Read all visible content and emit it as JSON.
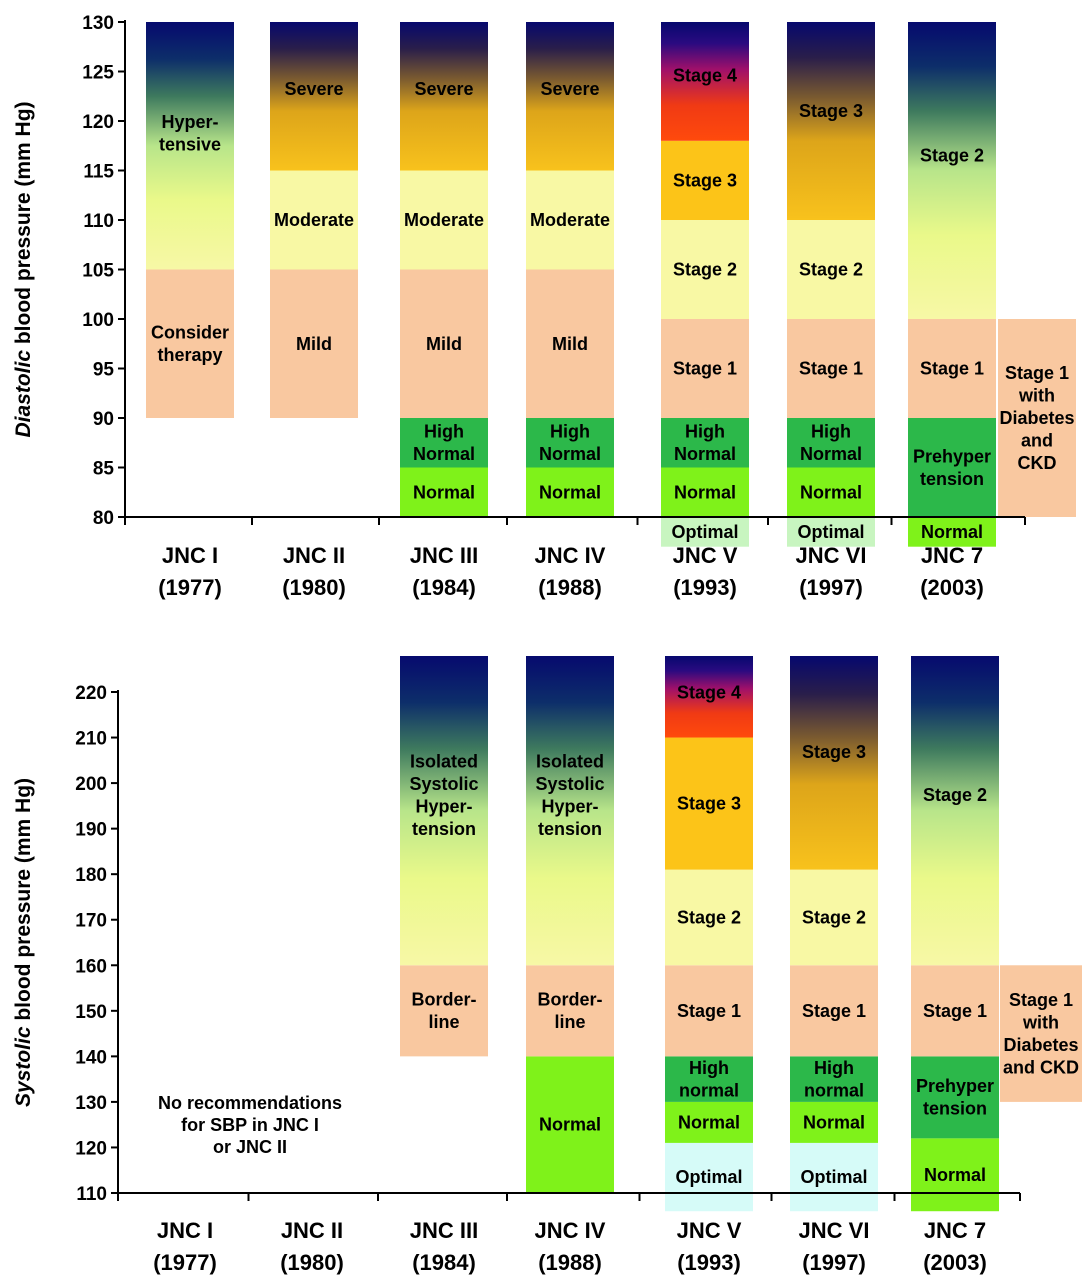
{
  "chart_data": [
    {
      "type": "bar",
      "ylabel_italic": "Diastolic",
      "ylabel_rest": " blood pressure (mm Hg)",
      "ylim": [
        80,
        130
      ],
      "yticks": [
        80,
        85,
        90,
        95,
        100,
        105,
        110,
        115,
        120,
        125,
        130
      ],
      "categories": [
        {
          "label": [
            "JNC I",
            "(1977)"
          ]
        },
        {
          "label": [
            "JNC II",
            "(1980)"
          ]
        },
        {
          "label": [
            "JNC III",
            "(1984)"
          ]
        },
        {
          "label": [
            "JNC IV",
            "(1988)"
          ]
        },
        {
          "label": [
            "JNC V",
            "(1993)"
          ]
        },
        {
          "label": [
            "JNC VI",
            "(1997)"
          ]
        },
        {
          "label": [
            "JNC 7",
            "(2003)"
          ]
        }
      ],
      "bars": [
        {
          "category": 0,
          "segments": [
            {
              "from": 90,
              "to": 105,
              "label": [
                "Consider",
                "therapy"
              ],
              "color": "#F9C8A0"
            },
            {
              "from": 105,
              "to": 130,
              "label": [
                "Hyper-",
                "tensive"
              ],
              "gradient": "dark"
            }
          ]
        },
        {
          "category": 1,
          "segments": [
            {
              "from": 90,
              "to": 105,
              "label": [
                "Mild"
              ],
              "color": "#F9C8A0"
            },
            {
              "from": 105,
              "to": 115,
              "label": [
                "Moderate"
              ],
              "color": "#F8F8A4"
            },
            {
              "from": 115,
              "to": 130,
              "label": [
                "Severe"
              ],
              "gradient": "gold"
            }
          ]
        },
        {
          "category": 2,
          "segments": [
            {
              "from": 80,
              "to": 85,
              "label": [
                "Normal"
              ],
              "color": "#7FF21A"
            },
            {
              "from": 85,
              "to": 90,
              "label": [
                "High",
                "Normal"
              ],
              "color": "#2CB84A"
            },
            {
              "from": 90,
              "to": 105,
              "label": [
                "Mild"
              ],
              "color": "#F9C8A0"
            },
            {
              "from": 105,
              "to": 115,
              "label": [
                "Moderate"
              ],
              "color": "#F8F8A4"
            },
            {
              "from": 115,
              "to": 130,
              "label": [
                "Severe"
              ],
              "gradient": "gold"
            }
          ]
        },
        {
          "category": 3,
          "segments": [
            {
              "from": 80,
              "to": 85,
              "label": [
                "Normal"
              ],
              "color": "#7FF21A"
            },
            {
              "from": 85,
              "to": 90,
              "label": [
                "High",
                "Normal"
              ],
              "color": "#2CB84A"
            },
            {
              "from": 90,
              "to": 105,
              "label": [
                "Mild"
              ],
              "color": "#F9C8A0"
            },
            {
              "from": 105,
              "to": 115,
              "label": [
                "Moderate"
              ],
              "color": "#F8F8A4"
            },
            {
              "from": 115,
              "to": 130,
              "label": [
                "Severe"
              ],
              "gradient": "gold"
            }
          ]
        },
        {
          "category": 4,
          "segments": [
            {
              "from": 77,
              "to": 80,
              "label": [
                "Optimal"
              ],
              "color": "#C8F5C0"
            },
            {
              "from": 80,
              "to": 85,
              "label": [
                "Normal"
              ],
              "color": "#7FF21A"
            },
            {
              "from": 85,
              "to": 90,
              "label": [
                "High",
                "Normal"
              ],
              "color": "#2CB84A"
            },
            {
              "from": 90,
              "to": 100,
              "label": [
                "Stage 1"
              ],
              "color": "#F9C8A0"
            },
            {
              "from": 100,
              "to": 110,
              "label": [
                "Stage 2"
              ],
              "color": "#F8F8A4"
            },
            {
              "from": 110,
              "to": 118,
              "label": [
                "Stage 3"
              ],
              "color": "#FCC418"
            },
            {
              "from": 118,
              "to": 130,
              "label": [
                "Stage 4"
              ],
              "gradient": "red"
            }
          ]
        },
        {
          "category": 5,
          "segments": [
            {
              "from": 77,
              "to": 80,
              "label": [
                "Optimal"
              ],
              "color": "#C8F5C0"
            },
            {
              "from": 80,
              "to": 85,
              "label": [
                "Normal"
              ],
              "color": "#7FF21A"
            },
            {
              "from": 85,
              "to": 90,
              "label": [
                "High",
                "Normal"
              ],
              "color": "#2CB84A"
            },
            {
              "from": 90,
              "to": 100,
              "label": [
                "Stage 1"
              ],
              "color": "#F9C8A0"
            },
            {
              "from": 100,
              "to": 110,
              "label": [
                "Stage 2"
              ],
              "color": "#F8F8A4"
            },
            {
              "from": 110,
              "to": 130,
              "label": [
                "Stage 3"
              ],
              "gradient": "gold"
            }
          ]
        },
        {
          "category": 6,
          "segments": [
            {
              "from": 77,
              "to": 80,
              "label": [
                "Normal"
              ],
              "color": "#7FF21A"
            },
            {
              "from": 80,
              "to": 90,
              "label": [
                "Prehyper",
                "tension"
              ],
              "color": "#2CB84A"
            },
            {
              "from": 90,
              "to": 100,
              "label": [
                "Stage 1"
              ],
              "color": "#F9C8A0"
            },
            {
              "from": 100,
              "to": 130,
              "label": [
                "Stage 2"
              ],
              "gradient": "dark"
            }
          ]
        },
        {
          "category": 7,
          "extra": true,
          "segments": [
            {
              "from": 80,
              "to": 100,
              "label": [
                "Stage 1",
                "with",
                "Diabetes",
                "and",
                "CKD"
              ],
              "color": "#F9C8A0"
            }
          ]
        }
      ]
    },
    {
      "type": "bar",
      "ylabel_italic": "Systolic",
      "ylabel_rest": " blood pressure (mm Hg)",
      "ylim": [
        110,
        220
      ],
      "yticks": [
        110,
        120,
        130,
        140,
        150,
        160,
        170,
        180,
        190,
        200,
        210,
        220
      ],
      "note": [
        "No recommendations",
        "for SBP in JNC I",
        "or JNC II"
      ],
      "categories": [
        {
          "label": [
            "JNC I",
            "(1977)"
          ]
        },
        {
          "label": [
            "JNC II",
            "(1980)"
          ]
        },
        {
          "label": [
            "JNC III",
            "(1984)"
          ]
        },
        {
          "label": [
            "JNC IV",
            "(1988)"
          ]
        },
        {
          "label": [
            "JNC V",
            "(1993)"
          ]
        },
        {
          "label": [
            "JNC VI",
            "(1997)"
          ]
        },
        {
          "label": [
            "JNC 7",
            "(2003)"
          ]
        }
      ],
      "bars": [
        {
          "category": 2,
          "segments": [
            {
              "from": 140,
              "to": 160,
              "label": [
                "Border-",
                "line"
              ],
              "color": "#F9C8A0"
            },
            {
              "from": 160,
              "to": 228,
              "label": [
                "Isolated",
                "Systolic",
                "Hyper-",
                "tension"
              ],
              "gradient": "dark"
            }
          ]
        },
        {
          "category": 3,
          "segments": [
            {
              "from": 110,
              "to": 140,
              "label": [
                "Normal"
              ],
              "color": "#7FF21A"
            },
            {
              "from": 140,
              "to": 160,
              "label": [
                "Border-",
                "line"
              ],
              "color": "#F9C8A0"
            },
            {
              "from": 160,
              "to": 228,
              "label": [
                "Isolated",
                "Systolic",
                "Hyper-",
                "tension"
              ],
              "gradient": "dark"
            }
          ]
        },
        {
          "category": 4,
          "segments": [
            {
              "from": 106,
              "to": 121,
              "label": [
                "Optimal"
              ],
              "color": "#D6FBF8"
            },
            {
              "from": 121,
              "to": 130,
              "label": [
                "Normal"
              ],
              "color": "#7FF21A"
            },
            {
              "from": 130,
              "to": 140,
              "label": [
                "High",
                "normal"
              ],
              "color": "#2CB84A"
            },
            {
              "from": 140,
              "to": 160,
              "label": [
                "Stage 1"
              ],
              "color": "#F9C8A0"
            },
            {
              "from": 160,
              "to": 181,
              "label": [
                "Stage 2"
              ],
              "color": "#F8F8A4"
            },
            {
              "from": 181,
              "to": 210,
              "label": [
                "Stage 3"
              ],
              "color": "#FCC418"
            },
            {
              "from": 210,
              "to": 228,
              "label": [
                "Stage 4"
              ],
              "gradient": "red"
            }
          ]
        },
        {
          "category": 5,
          "segments": [
            {
              "from": 106,
              "to": 121,
              "label": [
                "Optimal"
              ],
              "color": "#D6FBF8"
            },
            {
              "from": 121,
              "to": 130,
              "label": [
                "Normal"
              ],
              "color": "#7FF21A"
            },
            {
              "from": 130,
              "to": 140,
              "label": [
                "High",
                "normal"
              ],
              "color": "#2CB84A"
            },
            {
              "from": 140,
              "to": 160,
              "label": [
                "Stage 1"
              ],
              "color": "#F9C8A0"
            },
            {
              "from": 160,
              "to": 181,
              "label": [
                "Stage 2"
              ],
              "color": "#F8F8A4"
            },
            {
              "from": 181,
              "to": 228,
              "label": [
                "Stage 3"
              ],
              "gradient": "gold"
            }
          ]
        },
        {
          "category": 6,
          "segments": [
            {
              "from": 106,
              "to": 122,
              "label": [
                "Normal"
              ],
              "color": "#7FF21A"
            },
            {
              "from": 122,
              "to": 140,
              "label": [
                "Prehyper",
                "tension"
              ],
              "color": "#2CB84A"
            },
            {
              "from": 140,
              "to": 160,
              "label": [
                "Stage 1"
              ],
              "color": "#F9C8A0"
            },
            {
              "from": 160,
              "to": 228,
              "label": [
                "Stage 2"
              ],
              "gradient": "dark"
            }
          ]
        },
        {
          "category": 7,
          "extra": true,
          "segments": [
            {
              "from": 130,
              "to": 160,
              "label": [
                "Stage 1",
                "with",
                "Diabetes",
                "and CKD"
              ],
              "color": "#F9C8A0"
            }
          ]
        }
      ]
    }
  ]
}
